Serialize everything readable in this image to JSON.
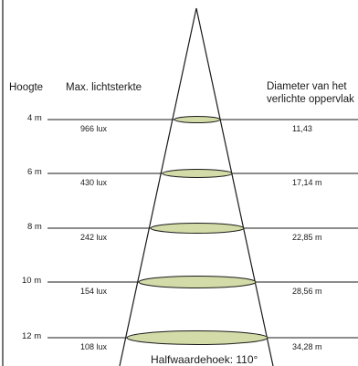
{
  "headers": {
    "height": "Hoogte",
    "max_intensity": "Max. lichtsterkte",
    "diameter_line1": "Diameter van het",
    "diameter_line2": "verlichte oppervlak"
  },
  "levels": [
    {
      "height": "4 m",
      "lux": "966 lux",
      "diameter": "11,43"
    },
    {
      "height": "6 m",
      "lux": "430 lux",
      "diameter": "17,14 m"
    },
    {
      "height": "8 m",
      "lux": "242 lux",
      "diameter": "22,85 m"
    },
    {
      "height": "10 m",
      "lux": "154 lux",
      "diameter": "28,56 m"
    },
    {
      "height": "12 m",
      "lux": "108 lux",
      "diameter": "34,28 m"
    }
  ],
  "half_angle_label": "Halfwaardehoek: 110°",
  "colors": {
    "ellipse_fill": "#d3dca8",
    "line": "#1a1a1a",
    "background": "#ffffff"
  }
}
